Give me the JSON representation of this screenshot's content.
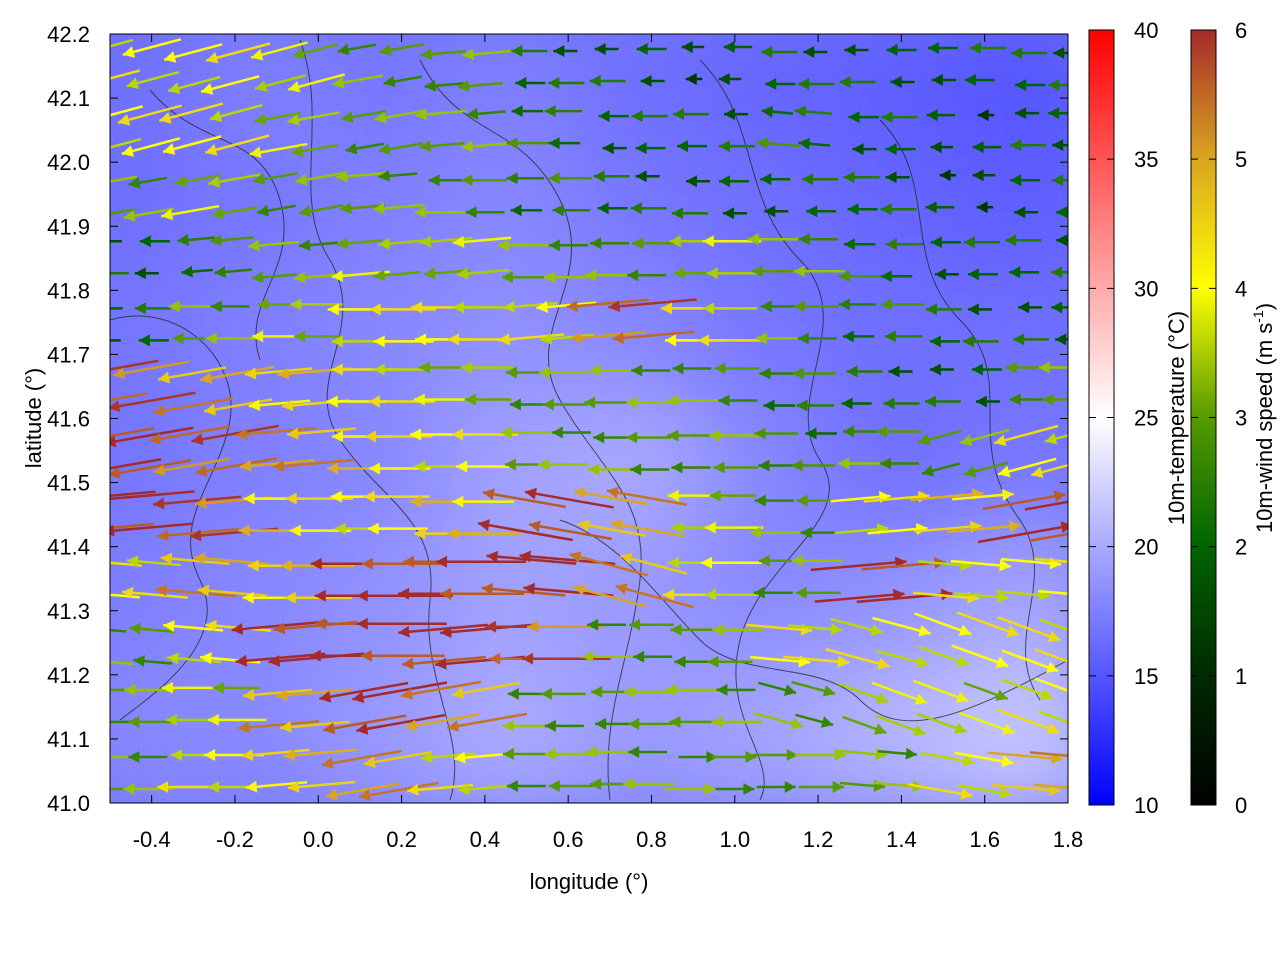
{
  "chart_data": {
    "type": "heatmap",
    "xlabel": "longitude (°)",
    "ylabel": "latitude (°)",
    "xlim": [
      -0.5,
      1.8
    ],
    "ylim": [
      41.0,
      42.2
    ],
    "xticks": [
      "-0.4",
      "-0.2",
      "0.0",
      "0.2",
      "0.4",
      "0.6",
      "0.8",
      "1.0",
      "1.2",
      "1.4",
      "1.6",
      "1.8"
    ],
    "yticks": [
      "41.0",
      "41.1",
      "41.2",
      "41.3",
      "41.4",
      "41.5",
      "41.6",
      "41.7",
      "41.8",
      "41.9",
      "42.0",
      "42.1",
      "42.2"
    ],
    "temperature_colorbar": {
      "label": "10m-temperature (°C)",
      "range": [
        10,
        40
      ],
      "ticks": [
        "10",
        "15",
        "20",
        "25",
        "30",
        "35",
        "40"
      ],
      "colors": {
        "low": "#0000ff",
        "mid": "#ffffff",
        "high": "#ff0000"
      }
    },
    "wind_colorbar": {
      "label": "10m-wind speed (m s",
      "label_sup": "-1",
      "label_end": ")",
      "range": [
        0,
        6
      ],
      "ticks": [
        "0",
        "1",
        "2",
        "3",
        "4",
        "5",
        "6"
      ],
      "colors": [
        "#000000",
        "#003300",
        "#006400",
        "#559a00",
        "#ffff00",
        "#daa520",
        "#a52a2a"
      ]
    },
    "temperature_grid": {
      "lon": [
        -0.4,
        -0.1,
        0.2,
        0.5,
        0.8,
        1.1,
        1.4,
        1.7
      ],
      "lat": [
        42.1,
        41.9,
        41.7,
        41.5,
        41.3,
        41.1
      ],
      "values": [
        [
          16.5,
          17.5,
          17.0,
          17.5,
          16.5,
          16.0,
          15.5,
          15.0
        ],
        [
          16.5,
          17.0,
          17.5,
          18.0,
          17.0,
          16.5,
          16.0,
          15.5
        ],
        [
          17.0,
          17.5,
          18.0,
          18.5,
          18.0,
          17.0,
          16.5,
          16.5
        ],
        [
          17.0,
          17.5,
          18.0,
          19.5,
          20.0,
          18.0,
          16.5,
          17.0
        ],
        [
          17.5,
          18.0,
          18.5,
          19.5,
          19.0,
          18.0,
          18.5,
          19.5
        ],
        [
          18.0,
          18.0,
          19.0,
          20.0,
          19.0,
          19.5,
          20.5,
          21.5
        ]
      ]
    },
    "wind_grid": {
      "lon": [
        -0.45,
        -0.25,
        -0.05,
        0.15,
        0.35,
        0.55,
        0.75,
        0.95,
        1.15,
        1.35,
        1.55,
        1.75
      ],
      "lat": [
        42.15,
        42.05,
        41.95,
        41.85,
        41.75,
        41.65,
        41.55,
        41.45,
        41.35,
        41.25,
        41.15,
        41.05
      ],
      "speed": [
        [
          4,
          4,
          3.5,
          3,
          3,
          2,
          2,
          1.5,
          2,
          2,
          2,
          2
        ],
        [
          4,
          4,
          3.5,
          3,
          3,
          2.5,
          2,
          2,
          2.5,
          2,
          1.5,
          2
        ],
        [
          3,
          3.5,
          3,
          3,
          3,
          2.5,
          2,
          2,
          2,
          2,
          1.5,
          2
        ],
        [
          2,
          2.5,
          3,
          3.5,
          3.5,
          3,
          3,
          3.5,
          3,
          2.5,
          2,
          2
        ],
        [
          2,
          3,
          3.5,
          4,
          4,
          4,
          5.5,
          4,
          3,
          2.5,
          2,
          2
        ],
        [
          5.5,
          5,
          4.5,
          4,
          3.5,
          3,
          3,
          3,
          2.5,
          2,
          2,
          3
        ],
        [
          6,
          5.5,
          5,
          4.5,
          4,
          3,
          3,
          3,
          2.5,
          3,
          3,
          4
        ],
        [
          6,
          5.5,
          4.5,
          4,
          4.5,
          6,
          5,
          3.5,
          3,
          4,
          4.5,
          6
        ],
        [
          4,
          5,
          4.5,
          6,
          6,
          6,
          5,
          4,
          3,
          6,
          4,
          4
        ],
        [
          3,
          4,
          6,
          6,
          6,
          5.5,
          3,
          3,
          4,
          4,
          4,
          4
        ],
        [
          3,
          3.5,
          5,
          6,
          5,
          3,
          3,
          3,
          3,
          3.5,
          3.5,
          4
        ],
        [
          3,
          4,
          4.5,
          5,
          4,
          3,
          3,
          3,
          3,
          3,
          4,
          5
        ]
      ],
      "direction_to_deg": [
        [
          195,
          195,
          195,
          190,
          185,
          180,
          180,
          180,
          180,
          180,
          180,
          180
        ],
        [
          195,
          195,
          190,
          190,
          185,
          180,
          180,
          180,
          175,
          180,
          180,
          180
        ],
        [
          190,
          190,
          190,
          185,
          180,
          180,
          180,
          180,
          180,
          180,
          180,
          180
        ],
        [
          180,
          185,
          185,
          185,
          185,
          180,
          180,
          180,
          180,
          180,
          180,
          180
        ],
        [
          180,
          180,
          180,
          180,
          180,
          185,
          185,
          180,
          180,
          180,
          180,
          180
        ],
        [
          190,
          190,
          185,
          180,
          180,
          180,
          180,
          180,
          180,
          180,
          180,
          180
        ],
        [
          190,
          190,
          185,
          180,
          180,
          180,
          180,
          180,
          180,
          180,
          195,
          195
        ],
        [
          185,
          185,
          180,
          180,
          180,
          170,
          170,
          180,
          180,
          5,
          5,
          10
        ],
        [
          175,
          175,
          180,
          180,
          180,
          175,
          165,
          180,
          180,
          5,
          355,
          355
        ],
        [
          175,
          175,
          185,
          180,
          185,
          180,
          180,
          180,
          355,
          345,
          340,
          340
        ],
        [
          180,
          180,
          185,
          190,
          190,
          180,
          180,
          180,
          345,
          340,
          340,
          340
        ],
        [
          180,
          180,
          185,
          190,
          185,
          180,
          180,
          0,
          0,
          355,
          350,
          355
        ]
      ]
    }
  }
}
